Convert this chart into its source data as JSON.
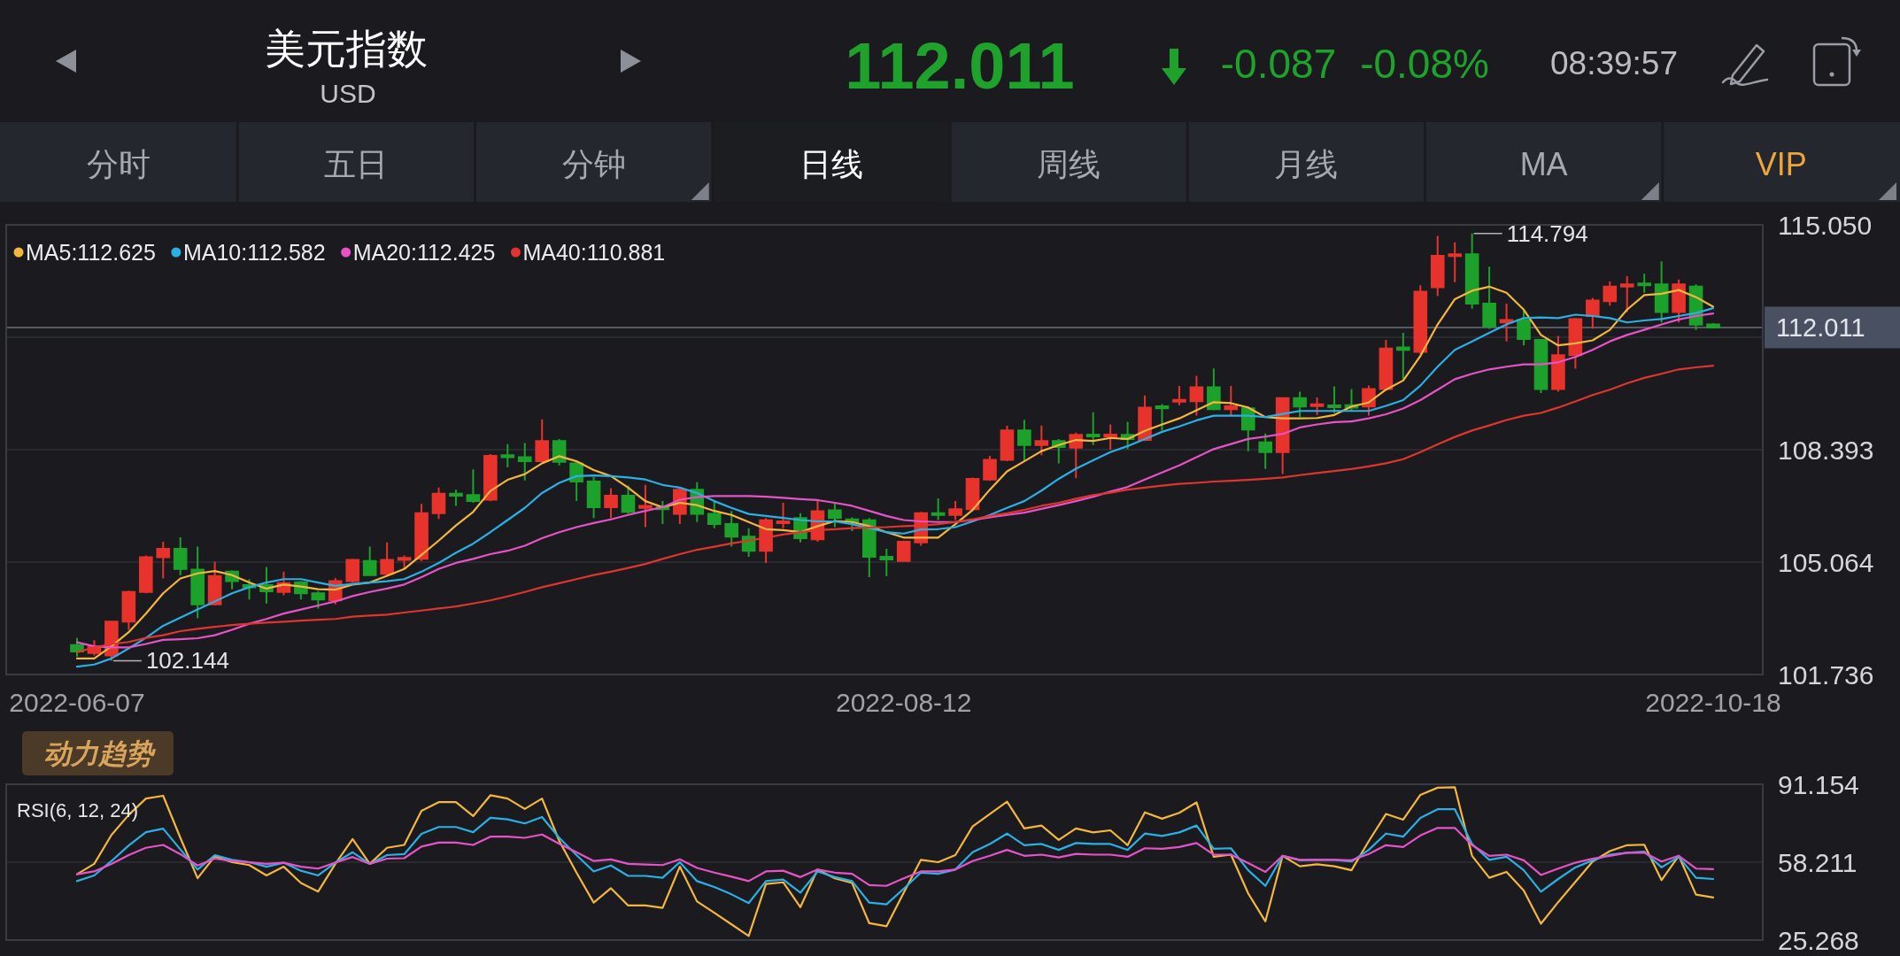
{
  "chart_data": [
    {
      "type": "other",
      "title": "美元指数",
      "subtitle": "USD",
      "annotations": [
        "112.011",
        "-0.087",
        "-0.08%",
        "08:39:57",
        "分时",
        "五日",
        "分钟",
        "日线",
        "周线",
        "月线",
        "MA",
        "VIP"
      ]
    },
    {
      "type": "candlestick",
      "categories": [
        "2022-06-07",
        null,
        null,
        null,
        null,
        null,
        null,
        null,
        null,
        null,
        null,
        null,
        null,
        null,
        null,
        null,
        null,
        null,
        null,
        null,
        null,
        null,
        null,
        null,
        null,
        null,
        null,
        null,
        null,
        null,
        null,
        null,
        null,
        null,
        null,
        null,
        null,
        null,
        null,
        null,
        null,
        null,
        null,
        null,
        null,
        null,
        null,
        null,
        "2022-08-12",
        null,
        null,
        null,
        null,
        null,
        null,
        null,
        null,
        null,
        null,
        null,
        null,
        null,
        null,
        null,
        null,
        null,
        null,
        null,
        null,
        null,
        null,
        null,
        null,
        null,
        null,
        null,
        null,
        null,
        null,
        null,
        null,
        null,
        null,
        null,
        null,
        null,
        null,
        null,
        null,
        null,
        null,
        null,
        null,
        null,
        null,
        "2022-10-18"
      ],
      "ohlc": [
        [
          102.61,
          102.82,
          102.27,
          102.42
        ],
        [
          102.37,
          102.75,
          102.3,
          102.57
        ],
        [
          102.3,
          103.33,
          102.144,
          103.3
        ],
        [
          103.3,
          104.22,
          103.06,
          104.18
        ],
        [
          104.18,
          105.26,
          104.14,
          105.21
        ],
        [
          105.21,
          105.67,
          104.58,
          105.46
        ],
        [
          105.46,
          105.8,
          104.68,
          104.86
        ],
        [
          104.84,
          105.52,
          103.41,
          103.81
        ],
        [
          103.81,
          105.08,
          103.78,
          104.65
        ],
        [
          104.78,
          104.82,
          104.26,
          104.5
        ],
        [
          104.38,
          104.56,
          103.96,
          104.32
        ],
        [
          104.38,
          104.92,
          103.84,
          104.2
        ],
        [
          104.18,
          104.78,
          104.08,
          104.44
        ],
        [
          104.46,
          104.5,
          103.96,
          104.14
        ],
        [
          104.14,
          104.2,
          103.69,
          103.96
        ],
        [
          103.93,
          104.59,
          103.81,
          104.5
        ],
        [
          104.5,
          105.16,
          104.46,
          105.13
        ],
        [
          105.1,
          105.52,
          104.66,
          104.68
        ],
        [
          104.72,
          105.65,
          104.68,
          105.13
        ],
        [
          105.13,
          105.26,
          104.86,
          105.19
        ],
        [
          105.16,
          106.79,
          105.1,
          106.51
        ],
        [
          106.51,
          107.27,
          106.34,
          107.09
        ],
        [
          107.09,
          107.21,
          106.73,
          107.03
        ],
        [
          107.05,
          107.81,
          106.82,
          106.87
        ],
        [
          106.91,
          108.26,
          106.87,
          108.21
        ],
        [
          108.23,
          108.56,
          107.87,
          108.17
        ],
        [
          108.17,
          108.59,
          107.48,
          108.05
        ],
        [
          108.05,
          109.29,
          108.03,
          108.65
        ],
        [
          108.65,
          108.71,
          107.93,
          108.03
        ],
        [
          107.99,
          108.05,
          106.87,
          107.45
        ],
        [
          107.45,
          107.59,
          106.37,
          106.69
        ],
        [
          106.69,
          107.25,
          106.37,
          107.03
        ],
        [
          107.03,
          107.33,
          106.49,
          106.55
        ],
        [
          106.67,
          107.35,
          106.1,
          106.73
        ],
        [
          106.69,
          106.87,
          106.19,
          106.63
        ],
        [
          106.49,
          107.27,
          106.19,
          107.21
        ],
        [
          107.21,
          107.43,
          106.25,
          106.49
        ],
        [
          106.49,
          106.87,
          106.07,
          106.19
        ],
        [
          106.19,
          106.58,
          105.52,
          105.82
        ],
        [
          105.82,
          106.07,
          105.22,
          105.4
        ],
        [
          105.4,
          106.37,
          105.04,
          106.3
        ],
        [
          106.22,
          106.82,
          106.07,
          106.27
        ],
        [
          106.37,
          106.51,
          105.65,
          105.77
        ],
        [
          105.74,
          106.87,
          105.67,
          106.57
        ],
        [
          106.6,
          106.82,
          106.1,
          106.37
        ],
        [
          106.33,
          106.39,
          105.98,
          106.27
        ],
        [
          106.3,
          106.37,
          104.62,
          105.22
        ],
        [
          105.22,
          105.46,
          104.65,
          105.14
        ],
        [
          105.1,
          105.7,
          105.07,
          105.67
        ],
        [
          105.65,
          106.55,
          105.55,
          106.51
        ],
        [
          106.51,
          106.95,
          106.31,
          106.46
        ],
        [
          106.46,
          106.87,
          106.31,
          106.63
        ],
        [
          106.63,
          107.57,
          106.58,
          107.53
        ],
        [
          107.51,
          108.21,
          107.47,
          108.09
        ],
        [
          108.09,
          109.1,
          108.05,
          108.96
        ],
        [
          108.96,
          109.28,
          108.08,
          108.53
        ],
        [
          108.53,
          109.11,
          108.23,
          108.65
        ],
        [
          108.65,
          108.71,
          107.99,
          108.47
        ],
        [
          108.45,
          108.9,
          107.55,
          108.83
        ],
        [
          108.83,
          109.5,
          108.53,
          108.8
        ],
        [
          108.8,
          109.14,
          108.39,
          108.83
        ],
        [
          108.83,
          109.22,
          108.41,
          108.71
        ],
        [
          108.68,
          110.0,
          108.65,
          109.64
        ],
        [
          109.68,
          109.74,
          108.96,
          109.62
        ],
        [
          109.82,
          110.28,
          109.71,
          109.86
        ],
        [
          109.83,
          110.58,
          109.4,
          110.24
        ],
        [
          110.24,
          110.8,
          109.56,
          109.59
        ],
        [
          109.59,
          110.28,
          109.4,
          109.68
        ],
        [
          109.62,
          109.68,
          108.35,
          108.99
        ],
        [
          108.61,
          108.87,
          107.82,
          108.32
        ],
        [
          108.32,
          109.94,
          107.67,
          109.92
        ],
        [
          109.92,
          110.11,
          109.36,
          109.67
        ],
        [
          109.69,
          109.94,
          109.42,
          109.73
        ],
        [
          109.69,
          110.27,
          109.48,
          109.66
        ],
        [
          109.71,
          110.19,
          109.52,
          109.64
        ],
        [
          109.67,
          110.29,
          109.4,
          110.19
        ],
        [
          110.19,
          111.64,
          110.17,
          111.39
        ],
        [
          111.42,
          111.85,
          110.48,
          111.35
        ],
        [
          111.29,
          113.26,
          111.23,
          113.07
        ],
        [
          113.2,
          114.72,
          112.94,
          114.13
        ],
        [
          114.13,
          114.53,
          113.35,
          114.18
        ],
        [
          114.18,
          114.794,
          112.57,
          112.72
        ],
        [
          112.72,
          113.81,
          111.97,
          112.04
        ],
        [
          112.16,
          112.72,
          111.6,
          112.23
        ],
        [
          112.23,
          112.51,
          111.48,
          111.67
        ],
        [
          111.64,
          111.66,
          110.07,
          110.19
        ],
        [
          110.19,
          111.76,
          110.11,
          111.19
        ],
        [
          111.19,
          112.29,
          110.79,
          112.26
        ],
        [
          112.35,
          112.89,
          111.98,
          112.81
        ],
        [
          112.79,
          113.37,
          112.66,
          113.22
        ],
        [
          113.22,
          113.53,
          112.47,
          113.29
        ],
        [
          113.31,
          113.6,
          113.04,
          113.26
        ],
        [
          113.29,
          113.97,
          112.16,
          112.47
        ],
        [
          112.47,
          113.43,
          112.16,
          113.29
        ],
        [
          113.22,
          113.29,
          111.94,
          112.098
        ],
        [
          112.1,
          112.14,
          111.99,
          112.011
        ]
      ],
      "colors": [
        "#1ca12b",
        "#e8332d",
        "#e8332d",
        "#e8332d",
        "#e8332d",
        "#e8332d",
        "#1ca12b",
        "#1ca12b",
        "#e8332d",
        "#1ca12b",
        "#1ca12b",
        "#1ca12b",
        "#e8332d",
        "#1ca12b",
        "#1ca12b",
        "#e8332d",
        "#e8332d",
        "#1ca12b",
        "#e8332d",
        "#e8332d",
        "#e8332d",
        "#e8332d",
        "#1ca12b",
        "#1ca12b",
        "#e8332d",
        "#1ca12b",
        "#1ca12b",
        "#e8332d",
        "#1ca12b",
        "#1ca12b",
        "#1ca12b",
        "#e8332d",
        "#1ca12b",
        "#e8332d",
        "#1ca12b",
        "#e8332d",
        "#1ca12b",
        "#1ca12b",
        "#1ca12b",
        "#1ca12b",
        "#e8332d",
        "#e8332d",
        "#1ca12b",
        "#e8332d",
        "#1ca12b",
        "#1ca12b",
        "#1ca12b",
        "#1ca12b",
        "#e8332d",
        "#e8332d",
        "#1ca12b",
        "#e8332d",
        "#e8332d",
        "#e8332d",
        "#e8332d",
        "#1ca12b",
        "#e8332d",
        "#1ca12b",
        "#e8332d",
        "#1ca12b",
        "#e8332d",
        "#1ca12b",
        "#e8332d",
        "#1ca12b",
        "#e8332d",
        "#e8332d",
        "#1ca12b",
        "#e8332d",
        "#1ca12b",
        "#1ca12b",
        "#e8332d",
        "#1ca12b",
        "#e8332d",
        "#1ca12b",
        "#1ca12b",
        "#e8332d",
        "#e8332d",
        "#1ca12b",
        "#e8332d",
        "#e8332d",
        "#e8332d",
        "#1ca12b",
        "#1ca12b",
        "#e8332d",
        "#1ca12b",
        "#1ca12b",
        "#e8332d",
        "#e8332d",
        "#e8332d",
        "#e8332d",
        "#e8332d",
        "#1ca12b",
        "#1ca12b",
        "#e8332d",
        "#1ca12b",
        "#1ca12b"
      ],
      "series": [
        {
          "name": "MA5:112.625",
          "type": "line",
          "color": "#f4b63c",
          "values": [
            102.21,
            102.21,
            102.57,
            102.99,
            103.54,
            104.14,
            104.58,
            104.73,
            104.8,
            104.68,
            104.46,
            104.28,
            104.4,
            104.34,
            104.26,
            104.25,
            104.4,
            104.46,
            104.66,
            104.86,
            105.28,
            105.7,
            106.15,
            106.55,
            107.17,
            107.5,
            107.67,
            107.99,
            108.2,
            108.05,
            107.79,
            107.61,
            107.27,
            106.87,
            106.69,
            106.82,
            106.75,
            106.58,
            106.46,
            106.25,
            106.04,
            106.01,
            105.95,
            106.13,
            106.28,
            106.25,
            106.13,
            105.95,
            105.79,
            105.79,
            105.79,
            106.19,
            106.61,
            107.21,
            107.75,
            108.05,
            108.35,
            108.53,
            108.68,
            108.65,
            108.74,
            108.71,
            108.95,
            109.14,
            109.32,
            109.56,
            109.8,
            109.77,
            109.64,
            109.36,
            109.32,
            109.32,
            109.33,
            109.42,
            109.67,
            109.79,
            110.17,
            110.44,
            111.17,
            112.1,
            112.85,
            113.1,
            113.22,
            113.04,
            112.54,
            111.79,
            111.48,
            111.54,
            111.63,
            111.94,
            112.54,
            112.97,
            113.01,
            113.12,
            112.91,
            112.625
          ]
        },
        {
          "name": "MA10:112.582",
          "type": "line",
          "color": "#2bb0e6",
          "values": [
            101.97,
            102.03,
            102.21,
            102.51,
            102.82,
            103.18,
            103.42,
            103.66,
            103.9,
            104.14,
            104.32,
            104.46,
            104.56,
            104.56,
            104.46,
            104.36,
            104.42,
            104.46,
            104.5,
            104.56,
            104.78,
            105.04,
            105.34,
            105.61,
            105.95,
            106.31,
            106.67,
            107.11,
            107.41,
            107.61,
            107.63,
            107.61,
            107.57,
            107.51,
            107.35,
            107.27,
            107.11,
            106.87,
            106.67,
            106.49,
            106.43,
            106.37,
            106.31,
            106.27,
            106.27,
            106.19,
            106.07,
            105.95,
            105.91,
            106.03,
            106.04,
            106.1,
            106.27,
            106.46,
            106.67,
            106.87,
            107.18,
            107.53,
            107.83,
            108.08,
            108.32,
            108.5,
            108.71,
            108.92,
            109.08,
            109.26,
            109.4,
            109.4,
            109.4,
            109.36,
            109.45,
            109.54,
            109.54,
            109.54,
            109.54,
            109.54,
            109.69,
            109.86,
            110.29,
            110.85,
            111.35,
            111.6,
            111.85,
            112.1,
            112.29,
            112.31,
            112.29,
            112.39,
            112.35,
            112.29,
            112.16,
            112.22,
            112.26,
            112.35,
            112.44,
            112.582
          ]
        },
        {
          "name": "MA20:112.425",
          "type": "line",
          "color": "#e653c6",
          "values": [
            102.69,
            102.57,
            102.54,
            102.54,
            102.64,
            102.76,
            102.78,
            102.81,
            102.9,
            103.06,
            103.24,
            103.38,
            103.54,
            103.66,
            103.78,
            103.9,
            104.06,
            104.18,
            104.28,
            104.4,
            104.62,
            104.86,
            105.04,
            105.16,
            105.3,
            105.4,
            105.55,
            105.77,
            105.95,
            106.1,
            106.22,
            106.33,
            106.46,
            106.58,
            106.69,
            106.91,
            106.99,
            107.02,
            107.02,
            107.02,
            107.0,
            106.97,
            106.93,
            106.9,
            106.82,
            106.73,
            106.58,
            106.43,
            106.31,
            106.27,
            106.25,
            106.25,
            106.31,
            106.39,
            106.46,
            106.53,
            106.64,
            106.75,
            106.87,
            107.0,
            107.15,
            107.29,
            107.51,
            107.72,
            107.93,
            108.17,
            108.41,
            108.56,
            108.71,
            108.78,
            108.86,
            109.05,
            109.14,
            109.21,
            109.23,
            109.32,
            109.44,
            109.61,
            109.86,
            110.17,
            110.48,
            110.64,
            110.77,
            110.85,
            110.92,
            110.92,
            110.98,
            111.14,
            111.35,
            111.6,
            111.79,
            111.94,
            112.1,
            112.25,
            112.35,
            112.425
          ]
        },
        {
          "name": "MA40:110.881",
          "type": "line",
          "color": "#e0342f",
          "values": [
            102.39,
            102.54,
            102.64,
            102.7,
            102.82,
            102.9,
            103.02,
            103.09,
            103.15,
            103.2,
            103.24,
            103.27,
            103.3,
            103.33,
            103.36,
            103.38,
            103.45,
            103.48,
            103.51,
            103.57,
            103.63,
            103.69,
            103.75,
            103.84,
            103.93,
            104.05,
            104.18,
            104.32,
            104.44,
            104.56,
            104.68,
            104.78,
            104.89,
            105.01,
            105.16,
            105.3,
            105.43,
            105.52,
            105.62,
            105.7,
            105.79,
            105.88,
            105.95,
            106.01,
            106.04,
            106.07,
            106.09,
            106.1,
            106.13,
            106.15,
            106.19,
            106.25,
            106.33,
            106.43,
            106.51,
            106.61,
            106.73,
            106.82,
            106.94,
            107.05,
            107.12,
            107.21,
            107.27,
            107.33,
            107.38,
            107.41,
            107.45,
            107.47,
            107.5,
            107.53,
            107.57,
            107.64,
            107.7,
            107.76,
            107.82,
            107.9,
            107.99,
            108.11,
            108.32,
            108.55,
            108.77,
            108.96,
            109.11,
            109.27,
            109.4,
            109.48,
            109.64,
            109.82,
            110.01,
            110.17,
            110.36,
            110.52,
            110.64,
            110.77,
            110.83,
            110.881
          ]
        }
      ],
      "ylim": [
        101.736,
        115.05
      ],
      "yticks": [
        101.736,
        105.064,
        108.393,
        {
          "value": 111.721,
          "label": null
        },
        {
          "value": 115.05,
          "label": "115.050"
        }
      ],
      "grid": "y",
      "legend": "top left",
      "ref_lines": [
        {
          "axis": "y",
          "value": 112.011,
          "label": "112.011",
          "color": "#6b6f78"
        }
      ],
      "annotations": [
        "114.794",
        "102.144"
      ]
    },
    {
      "type": "line",
      "title": "RSI(6, 12, 24)",
      "categories": [
        null,
        null,
        null,
        null,
        null,
        null,
        null,
        null,
        null,
        null,
        null,
        null,
        null,
        null,
        null,
        null,
        null,
        null,
        null,
        null,
        null,
        null,
        null,
        null,
        null,
        null,
        null,
        null,
        null,
        null,
        null,
        null,
        null,
        null,
        null,
        null,
        null,
        null,
        null,
        null,
        null,
        null,
        null,
        null,
        null,
        null,
        null,
        null,
        null,
        null,
        null,
        null,
        null,
        null,
        null,
        null,
        null,
        null,
        null,
        null,
        null,
        null,
        null,
        null,
        null,
        null,
        null,
        null,
        null,
        null,
        null,
        null,
        null,
        null,
        null,
        null,
        null,
        null,
        null,
        null,
        null,
        null,
        null,
        null,
        null,
        null,
        null,
        null,
        null,
        null,
        null,
        null,
        null,
        null,
        null,
        null
      ],
      "series": [
        {
          "color": "#f4b63c",
          "values": [
            53.1,
            57.5,
            69.7,
            78.2,
            85.1,
            86.3,
            68.5,
            51.4,
            60.7,
            58.2,
            57.0,
            52.6,
            56.3,
            49.4,
            45.8,
            57.5,
            68.0,
            57.5,
            64.3,
            65.5,
            79.9,
            83.6,
            83.6,
            77.7,
            86.5,
            85.1,
            80.7,
            85.1,
            67.2,
            53.8,
            41.1,
            47.2,
            39.9,
            39.9,
            38.9,
            56.3,
            41.6,
            36.8,
            31.9,
            27.0,
            49.0,
            49.7,
            39.2,
            55.1,
            51.4,
            49.4,
            32.4,
            31.1,
            45.3,
            59.2,
            58.2,
            61.2,
            73.3,
            78.6,
            83.8,
            72.5,
            73.7,
            67.6,
            72.5,
            70.8,
            71.7,
            65.4,
            79.3,
            76.6,
            79.1,
            83.5,
            60.5,
            61.4,
            45.0,
            33.2,
            60.9,
            56.5,
            57.3,
            56.5,
            54.8,
            67.1,
            78.6,
            76.2,
            86.7,
            89.7,
            89.9,
            60.9,
            51.6,
            54.1,
            46.2,
            32.2,
            41.3,
            49.9,
            58.5,
            62.9,
            65.4,
            65.6,
            50.6,
            60.9,
            44.5,
            43.3
          ]
        },
        {
          "color": "#2bb0e6",
          "values": [
            50.2,
            52.6,
            58.7,
            65.3,
            70.9,
            72.4,
            63.6,
            55.1,
            61.2,
            59.2,
            58.2,
            56.3,
            58.0,
            54.6,
            52.6,
            58.0,
            62.4,
            57.5,
            61.2,
            61.6,
            70.2,
            73.1,
            73.1,
            70.9,
            77.0,
            76.3,
            74.6,
            77.3,
            68.5,
            61.2,
            54.3,
            56.8,
            52.4,
            52.4,
            51.6,
            58.2,
            50.2,
            47.7,
            44.6,
            40.9,
            50.2,
            50.9,
            45.3,
            54.3,
            51.9,
            50.2,
            41.1,
            40.4,
            47.0,
            53.8,
            53.3,
            55.1,
            62.4,
            65.9,
            70.3,
            65.4,
            65.9,
            63.4,
            66.3,
            65.9,
            65.9,
            63.4,
            70.3,
            69.3,
            70.8,
            73.7,
            63.9,
            64.1,
            54.8,
            48.2,
            60.9,
            59.0,
            59.2,
            59.2,
            58.5,
            63.4,
            70.3,
            69.0,
            76.9,
            80.6,
            80.6,
            65.9,
            59.2,
            60.5,
            54.8,
            45.7,
            51.1,
            56.0,
            59.0,
            61.4,
            62.2,
            62.7,
            56.0,
            60.5,
            51.6,
            51.1
          ]
        },
        {
          "color": "#e653c6",
          "values": [
            53.1,
            54.3,
            57.5,
            61.2,
            64.3,
            65.5,
            61.6,
            56.8,
            59.7,
            58.7,
            58.2,
            57.5,
            58.0,
            56.3,
            55.5,
            58.0,
            60.4,
            57.5,
            59.7,
            59.9,
            64.8,
            66.5,
            66.5,
            65.5,
            69.0,
            69.0,
            68.5,
            69.9,
            66.0,
            62.4,
            58.7,
            59.4,
            57.5,
            57.2,
            57.0,
            59.4,
            55.8,
            53.8,
            52.1,
            50.2,
            54.3,
            54.6,
            51.9,
            55.1,
            53.8,
            53.3,
            48.5,
            48.2,
            51.4,
            54.3,
            54.3,
            55.1,
            58.7,
            60.9,
            63.4,
            60.9,
            61.4,
            60.2,
            61.7,
            61.4,
            61.4,
            60.5,
            64.1,
            63.9,
            64.6,
            66.3,
            61.4,
            61.4,
            57.8,
            54.1,
            60.9,
            59.2,
            59.2,
            59.2,
            59.0,
            61.7,
            65.4,
            64.6,
            69.5,
            72.7,
            72.7,
            65.4,
            60.9,
            61.4,
            59.0,
            52.8,
            55.5,
            58.0,
            59.7,
            60.9,
            62.2,
            62.2,
            58.5,
            60.9,
            55.5,
            55.3
          ]
        }
      ],
      "ylim": [
        25.268,
        91.154
      ],
      "yticks": [
        25.268,
        58.211,
        91.154
      ],
      "grid": "y",
      "annotations": [
        "动力趋势"
      ]
    }
  ]
}
